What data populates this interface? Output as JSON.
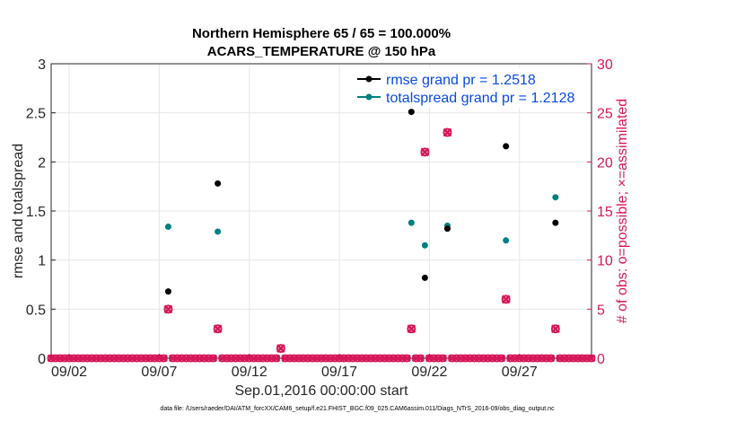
{
  "chart_data": {
    "type": "scatter",
    "title_line1": "Northern Hemisphere 65 / 65 = 100.000%",
    "title_line2": "ACARS_TEMPERATURE @ 150 hPa",
    "xlabel": "Sep.01,2016 00:00:00 start",
    "ylabel_left": "rmse and totalspread",
    "ylabel_right": "# of obs: o=possible; ×=assimilated",
    "footnote": "data file: /Users/raeder/DAI/ATM_forcXX/CAM6_setup/f.e21.FHIST_BGC.f09_025.CAM6assim.011/Diags_NTrS_2016-09/obs_diag_output.nc",
    "xlim": [
      0.5,
      30.5
    ],
    "ylim_left": [
      0,
      3
    ],
    "ylim_right": [
      0,
      30
    ],
    "x_ticks": [
      {
        "x": 1.5,
        "label": "09/02"
      },
      {
        "x": 6.5,
        "label": "09/07"
      },
      {
        "x": 11.5,
        "label": "09/12"
      },
      {
        "x": 16.5,
        "label": "09/17"
      },
      {
        "x": 21.5,
        "label": "09/22"
      },
      {
        "x": 26.5,
        "label": "09/27"
      }
    ],
    "y_ticks_left": [
      "0",
      "0.5",
      "1",
      "1.5",
      "2",
      "2.5",
      "3"
    ],
    "y_ticks_right": [
      "0",
      "5",
      "10",
      "15",
      "20",
      "25",
      "30"
    ],
    "grid": true,
    "legend": {
      "position": "top-right",
      "entries": [
        "rmse grand pr = 1.2518",
        "totalspread grand pr = 1.2128"
      ]
    },
    "colors": {
      "rmse": "#000000",
      "totalspread": "#008080",
      "obs": "#d6175a",
      "legend_text": "#0a49e6"
    },
    "series": [
      {
        "name": "rmse",
        "axis": "left",
        "points": [
          [
            7.0,
            0.68
          ],
          [
            9.75,
            1.78
          ],
          [
            20.5,
            2.51
          ],
          [
            21.25,
            0.82
          ],
          [
            22.5,
            1.32
          ],
          [
            25.75,
            2.16
          ],
          [
            28.5,
            1.38
          ]
        ]
      },
      {
        "name": "totalspread",
        "axis": "left",
        "points": [
          [
            7.0,
            1.34
          ],
          [
            9.75,
            1.29
          ],
          [
            20.5,
            1.38
          ],
          [
            21.25,
            1.15
          ],
          [
            22.5,
            1.35
          ],
          [
            25.75,
            1.2
          ],
          [
            28.5,
            1.64
          ]
        ]
      },
      {
        "name": "obs_possible",
        "axis": "right",
        "points": [
          [
            7.0,
            5
          ],
          [
            9.75,
            3
          ],
          [
            13.25,
            1
          ],
          [
            20.5,
            3
          ],
          [
            21.25,
            21
          ],
          [
            22.5,
            23
          ],
          [
            25.75,
            6
          ],
          [
            28.5,
            3
          ]
        ]
      },
      {
        "name": "obs_assimilated",
        "axis": "right",
        "points": [
          [
            7.0,
            5
          ],
          [
            9.75,
            3
          ],
          [
            13.25,
            1
          ],
          [
            20.5,
            3
          ],
          [
            21.25,
            21
          ],
          [
            22.5,
            23
          ],
          [
            25.75,
            6
          ],
          [
            28.5,
            3
          ]
        ]
      }
    ],
    "zero_obs_x_start": 0.5,
    "zero_obs_x_end": 30.5,
    "zero_obs_step": 0.25
  }
}
